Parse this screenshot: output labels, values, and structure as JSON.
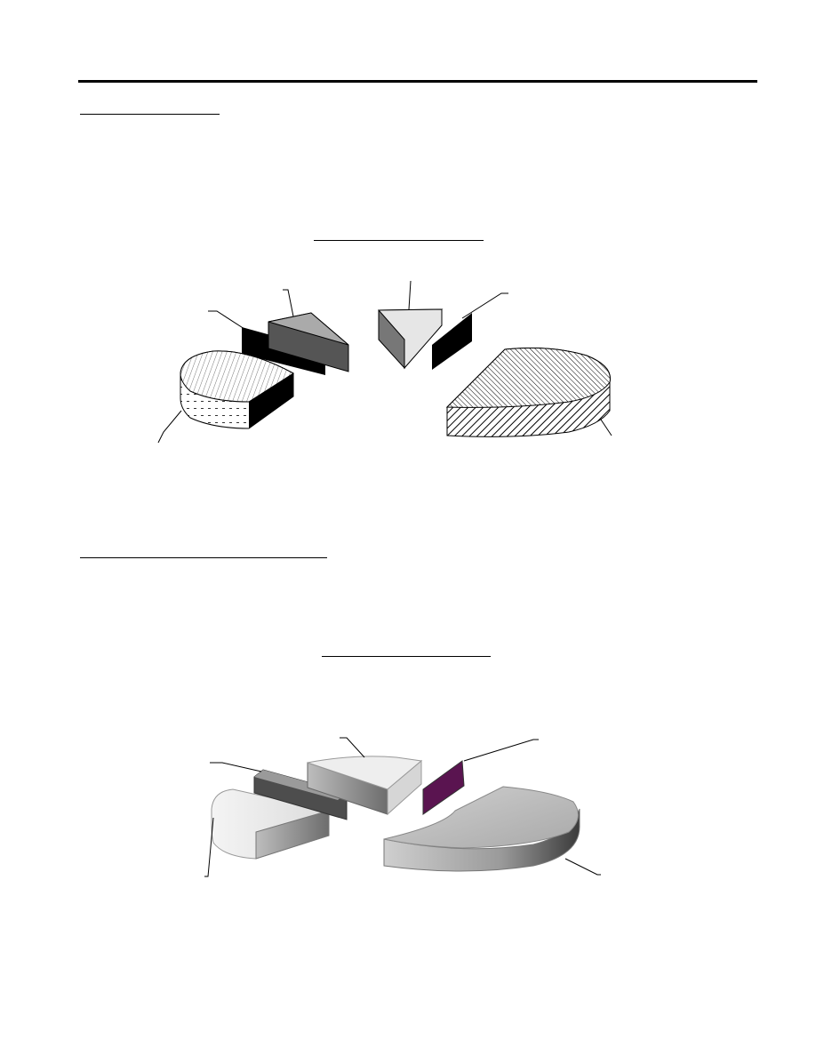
{
  "page": {
    "header_rule": "",
    "section1_heading": "",
    "section2_heading": "",
    "chart1_title": "",
    "chart2_title": ""
  },
  "chart_data": [
    {
      "type": "pie",
      "title": "",
      "style": "exploded 3-D pie, hatched monochrome fills",
      "legend": "none",
      "slices": [
        {
          "label": "",
          "value": 35,
          "fill": "hatched-diagonal"
        },
        {
          "label": "",
          "value": 22,
          "fill": "hatched-dotted"
        },
        {
          "label": "",
          "value": 5,
          "fill": "black"
        },
        {
          "label": "",
          "value": 8,
          "fill": "gray"
        },
        {
          "label": "",
          "value": 8,
          "fill": "light-gray"
        },
        {
          "label": "",
          "value": 4,
          "fill": "black"
        }
      ]
    },
    {
      "type": "pie",
      "title": "",
      "style": "exploded 3-D pie, gradient gray fills",
      "legend": "none",
      "slices": [
        {
          "label": "",
          "value": 45,
          "fill": "gradient-gray"
        },
        {
          "label": "",
          "value": 20,
          "fill": "light-gray"
        },
        {
          "label": "",
          "value": 4,
          "fill": "dark-gray"
        },
        {
          "label": "",
          "value": 12,
          "fill": "light-gray"
        },
        {
          "label": "",
          "value": 4,
          "fill": "#5a1450"
        }
      ]
    }
  ]
}
